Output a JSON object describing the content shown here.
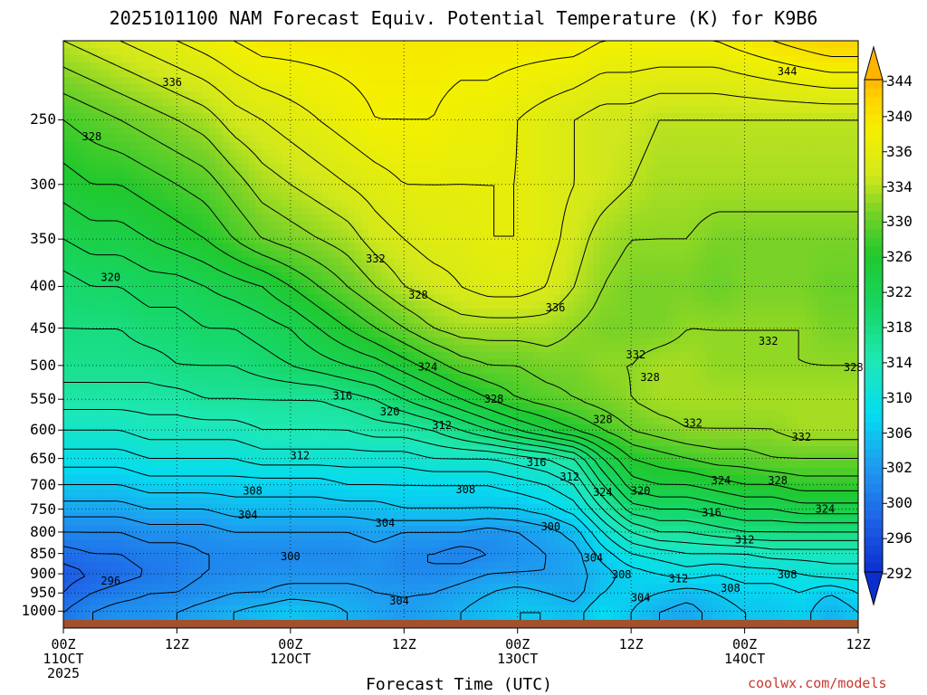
{
  "page": {
    "title": "2025101100 NAM Forecast Equiv. Potential Temperature (K) for K9B6",
    "credit": "coolwx.com/models"
  },
  "chart_data": {
    "type": "heatmap",
    "title": "2025101100 NAM Forecast Equiv. Potential Temperature (K) for K9B6",
    "xlabel": "Forecast Time (UTC)",
    "ylabel": "",
    "x_ticks": [
      {
        "hour": 0,
        "lines": [
          "00Z",
          "11OCT",
          "2025"
        ]
      },
      {
        "hour": 12,
        "lines": [
          "12Z"
        ]
      },
      {
        "hour": 24,
        "lines": [
          "00Z",
          "12OCT"
        ]
      },
      {
        "hour": 36,
        "lines": [
          "12Z"
        ]
      },
      {
        "hour": 48,
        "lines": [
          "00Z",
          "13OCT"
        ]
      },
      {
        "hour": 60,
        "lines": [
          "12Z"
        ]
      },
      {
        "hour": 72,
        "lines": [
          "00Z",
          "14OCT"
        ]
      },
      {
        "hour": 84,
        "lines": [
          "12Z"
        ]
      }
    ],
    "xlim": [
      0,
      84
    ],
    "y_ticks": [
      250,
      300,
      350,
      400,
      450,
      500,
      550,
      600,
      650,
      700,
      750,
      800,
      850,
      900,
      950,
      1000
    ],
    "ylim": [
      1025,
      200
    ],
    "y_scale": "log",
    "grid": true,
    "colorbar": {
      "ticks": [
        344,
        340,
        336,
        334,
        330,
        326,
        322,
        318,
        314,
        310,
        306,
        302,
        300,
        296,
        292
      ],
      "range": [
        290,
        346
      ],
      "extend": "both"
    },
    "series": [
      {
        "pressure": 1000,
        "values": [
          298,
          300,
          301,
          301,
          302,
          303,
          304,
          305,
          306,
          305,
          304,
          303,
          302,
          303,
          304,
          305,
          306,
          306,
          305,
          308,
          306,
          304,
          303,
          305,
          306,
          306,
          307,
          304,
          306
        ]
      },
      {
        "pressure": 950,
        "values": [
          296,
          298,
          299,
          300,
          300,
          301,
          302,
          302,
          303,
          303,
          303,
          302,
          302,
          302,
          303,
          304,
          305,
          304,
          303,
          306,
          307,
          306,
          305,
          306,
          307,
          307,
          308,
          306,
          308
        ]
      },
      {
        "pressure": 900,
        "values": [
          295,
          296,
          297,
          298,
          299,
          300,
          300,
          301,
          301,
          301,
          301,
          301,
          300,
          300,
          301,
          302,
          302,
          302,
          303,
          305,
          307,
          308,
          309,
          308,
          309,
          309,
          310,
          311,
          311
        ]
      },
      {
        "pressure": 850,
        "values": [
          297,
          298,
          298,
          299,
          299,
          300,
          300,
          300,
          300,
          300,
          300,
          301,
          300,
          300,
          299,
          300,
          301,
          302,
          303,
          307,
          310,
          311,
          312,
          312,
          312,
          313,
          313,
          313,
          313
        ]
      },
      {
        "pressure": 800,
        "values": [
          300,
          300,
          300,
          301,
          301,
          301,
          302,
          302,
          302,
          302,
          302,
          303,
          302,
          302,
          302,
          301,
          302,
          303,
          305,
          310,
          314,
          316,
          316,
          317,
          318,
          318,
          318,
          318,
          318
        ]
      },
      {
        "pressure": 750,
        "values": [
          303,
          303,
          303,
          304,
          304,
          304,
          305,
          305,
          305,
          305,
          305,
          305,
          306,
          306,
          306,
          306,
          306,
          307,
          309,
          314,
          319,
          320,
          320,
          321,
          322,
          322,
          323,
          323,
          323
        ]
      },
      {
        "pressure": 700,
        "values": [
          306,
          306,
          306,
          307,
          307,
          307,
          307,
          307,
          307,
          307,
          308,
          308,
          308,
          308,
          308,
          308,
          309,
          310,
          312,
          318,
          323,
          324,
          324,
          325,
          326,
          326,
          327,
          327,
          327
        ]
      },
      {
        "pressure": 650,
        "values": [
          309,
          309,
          309,
          310,
          310,
          310,
          310,
          311,
          311,
          311,
          311,
          311,
          311,
          312,
          312,
          312,
          313,
          314,
          316,
          322,
          326,
          327,
          328,
          329,
          329,
          330,
          330,
          330,
          330
        ]
      },
      {
        "pressure": 600,
        "values": [
          312,
          312,
          312,
          313,
          313,
          313,
          313,
          314,
          314,
          314,
          314,
          315,
          315,
          316,
          318,
          320,
          322,
          324,
          326,
          328,
          330,
          331,
          332,
          332,
          332,
          332,
          333,
          333,
          333
        ]
      },
      {
        "pressure": 550,
        "values": [
          315,
          315,
          315,
          315,
          315,
          316,
          316,
          316,
          316,
          316,
          317,
          318,
          320,
          322,
          324,
          326,
          328,
          329,
          330,
          331,
          332,
          333,
          333,
          333,
          333,
          333,
          333,
          333,
          333
        ]
      },
      {
        "pressure": 500,
        "values": [
          317,
          317,
          317,
          317,
          318,
          318,
          318,
          319,
          320,
          321,
          322,
          323,
          325,
          327,
          329,
          330,
          330,
          331,
          331,
          332,
          332,
          333,
          333,
          332,
          332,
          332,
          332,
          332,
          332
        ]
      },
      {
        "pressure": 450,
        "values": [
          318,
          318,
          318,
          319,
          319,
          320,
          320,
          321,
          322,
          324,
          326,
          328,
          330,
          332,
          333,
          333,
          333,
          333,
          332,
          331,
          331,
          331,
          332,
          332,
          332,
          332,
          332,
          331,
          331
        ]
      },
      {
        "pressure": 400,
        "values": [
          319,
          320,
          320,
          321,
          321,
          322,
          323,
          324,
          326,
          328,
          330,
          332,
          334,
          335,
          336,
          337,
          337,
          336,
          334,
          332,
          331,
          331,
          331,
          330,
          331,
          331,
          331,
          330,
          330
        ]
      },
      {
        "pressure": 350,
        "values": [
          322,
          323,
          323,
          324,
          325,
          326,
          328,
          330,
          331,
          332,
          333,
          335,
          336,
          337,
          337,
          338,
          338,
          337,
          335,
          333,
          332,
          332,
          332,
          331,
          331,
          331,
          331,
          331,
          331
        ]
      },
      {
        "pressure": 300,
        "values": [
          325,
          326,
          326,
          327,
          328,
          329,
          331,
          333,
          334,
          335,
          336,
          337,
          338,
          338,
          338,
          338,
          338,
          337,
          336,
          335,
          334,
          333,
          333,
          333,
          333,
          333,
          333,
          333,
          333
        ]
      },
      {
        "pressure": 250,
        "values": [
          328,
          329,
          330,
          331,
          332,
          333,
          335,
          336,
          337,
          338,
          339,
          340,
          340,
          340,
          339,
          339,
          338,
          337,
          336,
          335,
          335,
          334,
          334,
          334,
          334,
          334,
          334,
          334,
          334
        ]
      },
      {
        "pressure": 200,
        "values": [
          334,
          335,
          336,
          337,
          338,
          339,
          340,
          341,
          341,
          341,
          341,
          341,
          341,
          341,
          341,
          341,
          341,
          341,
          341,
          340,
          340,
          340,
          340,
          340,
          341,
          342,
          343,
          344,
          344
        ]
      }
    ],
    "hours": [
      0,
      3,
      6,
      9,
      12,
      15,
      18,
      21,
      24,
      27,
      30,
      33,
      36,
      39,
      42,
      45,
      48,
      51,
      54,
      57,
      60,
      63,
      66,
      69,
      72,
      75,
      78,
      81,
      84
    ],
    "contour_interval": 2,
    "contour_labels": [
      {
        "hour": 76.5,
        "pressure": 218,
        "value": "344"
      },
      {
        "hour": 11.5,
        "pressure": 225,
        "value": "336"
      },
      {
        "hour": 3,
        "pressure": 262,
        "value": "328"
      },
      {
        "hour": 33,
        "pressure": 370,
        "value": "332"
      },
      {
        "hour": 5,
        "pressure": 390,
        "value": "320"
      },
      {
        "hour": 37.5,
        "pressure": 410,
        "value": "328"
      },
      {
        "hour": 52,
        "pressure": 425,
        "value": "336"
      },
      {
        "hour": 60.5,
        "pressure": 485,
        "value": "332"
      },
      {
        "hour": 74.5,
        "pressure": 467,
        "value": "332"
      },
      {
        "hour": 83.5,
        "pressure": 503,
        "value": "328"
      },
      {
        "hour": 38.5,
        "pressure": 502,
        "value": "324"
      },
      {
        "hour": 62,
        "pressure": 517,
        "value": "328"
      },
      {
        "hour": 29.5,
        "pressure": 545,
        "value": "316"
      },
      {
        "hour": 45.5,
        "pressure": 550,
        "value": "328"
      },
      {
        "hour": 34.5,
        "pressure": 570,
        "value": "320"
      },
      {
        "hour": 57,
        "pressure": 582,
        "value": "328"
      },
      {
        "hour": 40,
        "pressure": 592,
        "value": "312"
      },
      {
        "hour": 66.5,
        "pressure": 588,
        "value": "332"
      },
      {
        "hour": 78,
        "pressure": 612,
        "value": "332"
      },
      {
        "hour": 25,
        "pressure": 645,
        "value": "312"
      },
      {
        "hour": 50,
        "pressure": 657,
        "value": "316"
      },
      {
        "hour": 53.5,
        "pressure": 685,
        "value": "312"
      },
      {
        "hour": 69.5,
        "pressure": 692,
        "value": "324"
      },
      {
        "hour": 75.5,
        "pressure": 692,
        "value": "328"
      },
      {
        "hour": 20,
        "pressure": 712,
        "value": "308"
      },
      {
        "hour": 42.5,
        "pressure": 710,
        "value": "308"
      },
      {
        "hour": 57,
        "pressure": 715,
        "value": "324"
      },
      {
        "hour": 61,
        "pressure": 712,
        "value": "320"
      },
      {
        "hour": 68.5,
        "pressure": 757,
        "value": "316"
      },
      {
        "hour": 80.5,
        "pressure": 750,
        "value": "324"
      },
      {
        "hour": 19.5,
        "pressure": 762,
        "value": "304"
      },
      {
        "hour": 34,
        "pressure": 780,
        "value": "304"
      },
      {
        "hour": 51.5,
        "pressure": 788,
        "value": "300"
      },
      {
        "hour": 72,
        "pressure": 818,
        "value": "312"
      },
      {
        "hour": 24,
        "pressure": 857,
        "value": "300"
      },
      {
        "hour": 56,
        "pressure": 860,
        "value": "304"
      },
      {
        "hour": 59,
        "pressure": 902,
        "value": "308"
      },
      {
        "hour": 65,
        "pressure": 912,
        "value": "312"
      },
      {
        "hour": 76.5,
        "pressure": 902,
        "value": "308"
      },
      {
        "hour": 5,
        "pressure": 919,
        "value": "296"
      },
      {
        "hour": 70.5,
        "pressure": 937,
        "value": "308"
      },
      {
        "hour": 61,
        "pressure": 963,
        "value": "304"
      },
      {
        "hour": 35.5,
        "pressure": 972,
        "value": "304"
      }
    ]
  }
}
